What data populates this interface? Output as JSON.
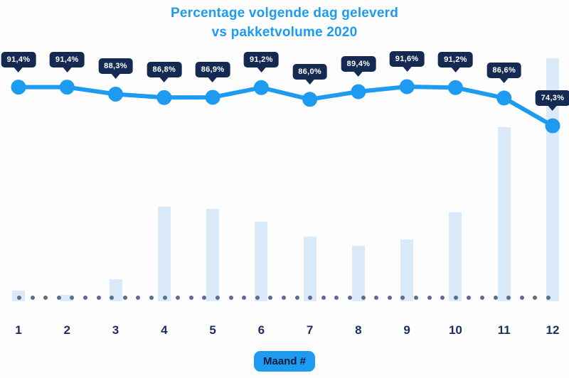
{
  "title": {
    "line1": "Percentage volgende dag geleverd",
    "line2": "vs pakketvolume 2020"
  },
  "x_axis": {
    "title": "Maand #",
    "tick_labels": [
      "1",
      "2",
      "3",
      "4",
      "5",
      "6",
      "7",
      "8",
      "9",
      "10",
      "11",
      "12"
    ]
  },
  "chart_data": {
    "type": [
      "line",
      "bar"
    ],
    "title": "Percentage volgende dag geleverd vs pakketvolume 2020",
    "xlabel": "Maand #",
    "ylabel": "",
    "categories": [
      "1",
      "2",
      "3",
      "4",
      "5",
      "6",
      "7",
      "8",
      "9",
      "10",
      "11",
      "12"
    ],
    "series": [
      {
        "name": "Percentage volgende dag geleverd",
        "type": "line",
        "unit": "%",
        "values": [
          91.4,
          91.4,
          88.3,
          86.8,
          86.9,
          91.2,
          86.0,
          89.4,
          91.6,
          91.2,
          86.6,
          74.3
        ],
        "point_labels": [
          "91,4%",
          "91,4%",
          "88,3%",
          "86,8%",
          "86,9%",
          "91,2%",
          "86,0%",
          "89,4%",
          "91,6%",
          "91,2%",
          "86,6%",
          "74,3%"
        ]
      },
      {
        "name": "Pakketvolume 2020",
        "type": "bar",
        "unit": "relative-height-unlabeled",
        "values": [
          4.4,
          2.6,
          9.1,
          38.9,
          38.0,
          32.7,
          26.6,
          22.8,
          25.4,
          36.5,
          71.6,
          100
        ]
      }
    ],
    "legend_position": "none",
    "grid": false,
    "baseline_style": "dotted"
  },
  "colors": {
    "accent_blue": "#1d9bf0",
    "tooltip_navy": "#152a52",
    "label_navy": "#1b2f5c",
    "bar_fill": "#daeaf9",
    "baseline_dot": "#5c6d8e",
    "badge_text": "#0b1b3a",
    "background": "#fdfdfe"
  }
}
